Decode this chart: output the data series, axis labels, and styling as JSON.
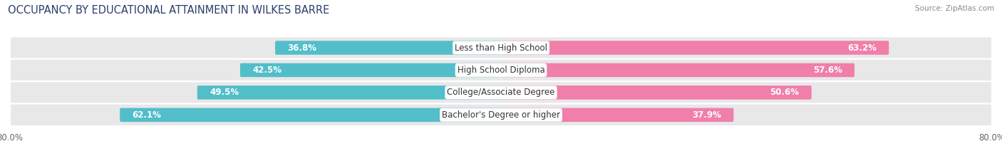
{
  "title": "OCCUPANCY BY EDUCATIONAL ATTAINMENT IN WILKES BARRE",
  "source": "Source: ZipAtlas.com",
  "categories": [
    "Less than High School",
    "High School Diploma",
    "College/Associate Degree",
    "Bachelor's Degree or higher"
  ],
  "owner_pct": [
    36.8,
    42.5,
    49.5,
    62.1
  ],
  "renter_pct": [
    63.2,
    57.6,
    50.6,
    37.9
  ],
  "owner_color": "#52bec9",
  "renter_color": "#f07faa",
  "row_bg_color": "#e8e8e8",
  "label_color_dark": "#555555",
  "label_color_white": "#ffffff",
  "xlim": 80.0,
  "bar_height": 0.62,
  "title_fontsize": 10.5,
  "label_fontsize": 8.5,
  "tick_fontsize": 8.5,
  "source_fontsize": 7.5,
  "x_axis_label_left": "80.0%",
  "x_axis_label_right": "80.0%"
}
